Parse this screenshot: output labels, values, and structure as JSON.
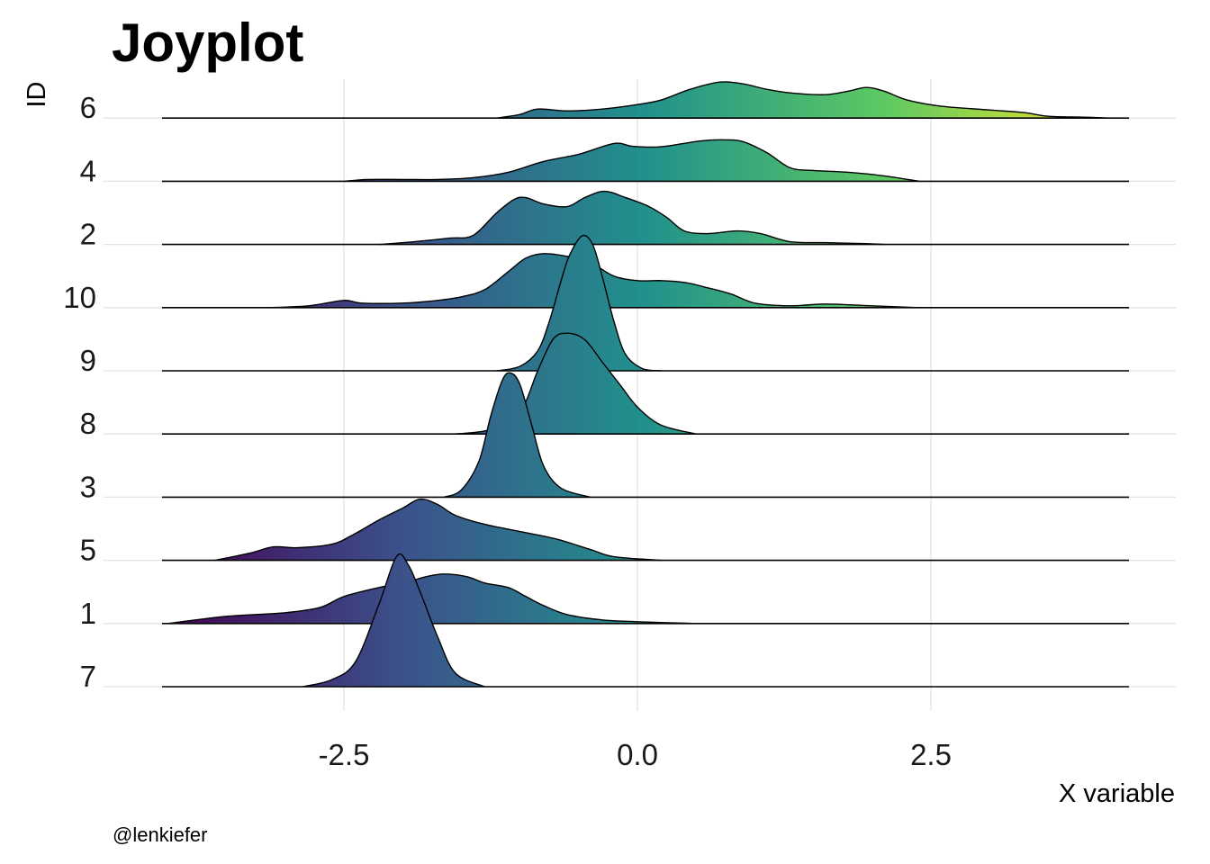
{
  "chart_data": {
    "type": "joyplot",
    "title": "Joyplot",
    "xlabel": "X variable",
    "ylabel": "ID",
    "caption": "@lenkiefer",
    "xlim": [
      -4.05,
      4.6
    ],
    "x_ticks": [
      -2.5,
      0.0,
      2.5
    ],
    "x_tick_labels": [
      "-2.5",
      "0.0",
      "2.5"
    ],
    "fill_scale": [
      "#440154",
      "#3b528b",
      "#21918c",
      "#5ec962",
      "#fde725"
    ],
    "fill_domain": [
      -4.0,
      6.0
    ],
    "categories": [
      "7",
      "1",
      "5",
      "3",
      "8",
      "9",
      "10",
      "2",
      "4",
      "6"
    ],
    "series": [
      {
        "id": "7",
        "points": [
          [
            -2.85,
            0.0
          ],
          [
            -2.6,
            0.08
          ],
          [
            -2.4,
            0.28
          ],
          [
            -2.2,
            0.92
          ],
          [
            -2.05,
            1.45
          ],
          [
            -1.95,
            1.35
          ],
          [
            -1.85,
            1.05
          ],
          [
            -1.7,
            0.55
          ],
          [
            -1.55,
            0.15
          ],
          [
            -1.3,
            0.0
          ]
        ]
      },
      {
        "id": "1",
        "points": [
          [
            -4.0,
            0.0
          ],
          [
            -3.5,
            0.08
          ],
          [
            -3.0,
            0.12
          ],
          [
            -2.7,
            0.18
          ],
          [
            -2.5,
            0.3
          ],
          [
            -2.2,
            0.4
          ],
          [
            -2.0,
            0.45
          ],
          [
            -1.8,
            0.52
          ],
          [
            -1.65,
            0.55
          ],
          [
            -1.45,
            0.52
          ],
          [
            -1.3,
            0.45
          ],
          [
            -1.1,
            0.4
          ],
          [
            -0.95,
            0.3
          ],
          [
            -0.8,
            0.2
          ],
          [
            -0.6,
            0.1
          ],
          [
            -0.3,
            0.04
          ],
          [
            0.0,
            0.02
          ],
          [
            0.5,
            0.0
          ]
        ]
      },
      {
        "id": "5",
        "points": [
          [
            -3.6,
            0.0
          ],
          [
            -3.3,
            0.08
          ],
          [
            -3.1,
            0.15
          ],
          [
            -2.9,
            0.14
          ],
          [
            -2.6,
            0.18
          ],
          [
            -2.4,
            0.3
          ],
          [
            -2.2,
            0.45
          ],
          [
            -2.0,
            0.58
          ],
          [
            -1.85,
            0.68
          ],
          [
            -1.7,
            0.62
          ],
          [
            -1.55,
            0.5
          ],
          [
            -1.3,
            0.4
          ],
          [
            -1.0,
            0.32
          ],
          [
            -0.7,
            0.24
          ],
          [
            -0.4,
            0.12
          ],
          [
            -0.2,
            0.04
          ],
          [
            0.2,
            0.0
          ]
        ]
      },
      {
        "id": "3",
        "points": [
          [
            -1.65,
            0.0
          ],
          [
            -1.5,
            0.08
          ],
          [
            -1.35,
            0.4
          ],
          [
            -1.25,
            0.9
          ],
          [
            -1.15,
            1.3
          ],
          [
            -1.08,
            1.38
          ],
          [
            -1.0,
            1.25
          ],
          [
            -0.9,
            0.8
          ],
          [
            -0.8,
            0.35
          ],
          [
            -0.65,
            0.1
          ],
          [
            -0.4,
            0.0
          ]
        ]
      },
      {
        "id": "8",
        "points": [
          [
            -1.55,
            0.0
          ],
          [
            -1.25,
            0.05
          ],
          [
            -1.0,
            0.25
          ],
          [
            -0.85,
            0.7
          ],
          [
            -0.72,
            1.05
          ],
          [
            -0.6,
            1.12
          ],
          [
            -0.45,
            1.05
          ],
          [
            -0.3,
            0.8
          ],
          [
            -0.15,
            0.55
          ],
          [
            0.0,
            0.3
          ],
          [
            0.2,
            0.1
          ],
          [
            0.5,
            0.0
          ]
        ]
      },
      {
        "id": "9",
        "points": [
          [
            -1.2,
            0.0
          ],
          [
            -1.0,
            0.05
          ],
          [
            -0.85,
            0.22
          ],
          [
            -0.75,
            0.55
          ],
          [
            -0.65,
            1.0
          ],
          [
            -0.58,
            1.28
          ],
          [
            -0.47,
            1.5
          ],
          [
            -0.38,
            1.4
          ],
          [
            -0.3,
            1.05
          ],
          [
            -0.2,
            0.55
          ],
          [
            -0.1,
            0.18
          ],
          [
            0.05,
            0.02
          ],
          [
            0.2,
            0.0
          ]
        ]
      },
      {
        "id": "10",
        "points": [
          [
            -3.15,
            0.0
          ],
          [
            -2.8,
            0.02
          ],
          [
            -2.5,
            0.08
          ],
          [
            -2.35,
            0.05
          ],
          [
            -2.0,
            0.05
          ],
          [
            -1.7,
            0.08
          ],
          [
            -1.5,
            0.12
          ],
          [
            -1.3,
            0.2
          ],
          [
            -1.1,
            0.4
          ],
          [
            -0.95,
            0.55
          ],
          [
            -0.8,
            0.6
          ],
          [
            -0.6,
            0.57
          ],
          [
            -0.4,
            0.5
          ],
          [
            -0.2,
            0.35
          ],
          [
            0.0,
            0.3
          ],
          [
            0.2,
            0.3
          ],
          [
            0.4,
            0.28
          ],
          [
            0.6,
            0.22
          ],
          [
            0.8,
            0.15
          ],
          [
            1.0,
            0.05
          ],
          [
            1.3,
            0.02
          ],
          [
            1.6,
            0.04
          ],
          [
            2.0,
            0.02
          ],
          [
            2.4,
            0.0
          ]
        ]
      },
      {
        "id": "2",
        "points": [
          [
            -2.2,
            0.0
          ],
          [
            -1.9,
            0.03
          ],
          [
            -1.6,
            0.07
          ],
          [
            -1.4,
            0.1
          ],
          [
            -1.2,
            0.35
          ],
          [
            -1.05,
            0.5
          ],
          [
            -0.95,
            0.52
          ],
          [
            -0.8,
            0.45
          ],
          [
            -0.6,
            0.42
          ],
          [
            -0.45,
            0.52
          ],
          [
            -0.28,
            0.59
          ],
          [
            -0.1,
            0.52
          ],
          [
            0.1,
            0.42
          ],
          [
            0.25,
            0.3
          ],
          [
            0.4,
            0.15
          ],
          [
            0.6,
            0.12
          ],
          [
            0.85,
            0.15
          ],
          [
            1.05,
            0.12
          ],
          [
            1.3,
            0.03
          ],
          [
            1.6,
            0.02
          ],
          [
            1.9,
            0.01
          ],
          [
            2.1,
            0.0
          ]
        ]
      },
      {
        "id": "4",
        "points": [
          [
            -2.5,
            0.0
          ],
          [
            -2.3,
            0.02
          ],
          [
            -2.0,
            0.02
          ],
          [
            -1.7,
            0.02
          ],
          [
            -1.4,
            0.04
          ],
          [
            -1.1,
            0.1
          ],
          [
            -0.8,
            0.22
          ],
          [
            -0.5,
            0.3
          ],
          [
            -0.2,
            0.42
          ],
          [
            -0.05,
            0.39
          ],
          [
            0.15,
            0.38
          ],
          [
            0.3,
            0.4
          ],
          [
            0.55,
            0.45
          ],
          [
            0.75,
            0.46
          ],
          [
            0.9,
            0.44
          ],
          [
            1.1,
            0.32
          ],
          [
            1.3,
            0.15
          ],
          [
            1.5,
            0.12
          ],
          [
            1.8,
            0.1
          ],
          [
            2.1,
            0.06
          ],
          [
            2.4,
            0.0
          ]
        ]
      },
      {
        "id": "6",
        "points": [
          [
            -1.2,
            0.0
          ],
          [
            -1.0,
            0.04
          ],
          [
            -0.85,
            0.1
          ],
          [
            -0.6,
            0.08
          ],
          [
            -0.3,
            0.1
          ],
          [
            0.0,
            0.15
          ],
          [
            0.2,
            0.2
          ],
          [
            0.45,
            0.32
          ],
          [
            0.7,
            0.4
          ],
          [
            0.9,
            0.38
          ],
          [
            1.1,
            0.32
          ],
          [
            1.3,
            0.28
          ],
          [
            1.6,
            0.26
          ],
          [
            1.8,
            0.3
          ],
          [
            1.95,
            0.34
          ],
          [
            2.1,
            0.3
          ],
          [
            2.3,
            0.2
          ],
          [
            2.6,
            0.13
          ],
          [
            3.0,
            0.09
          ],
          [
            3.3,
            0.06
          ],
          [
            3.5,
            0.02
          ],
          [
            3.8,
            0.01
          ],
          [
            4.0,
            0.0
          ]
        ]
      }
    ]
  }
}
